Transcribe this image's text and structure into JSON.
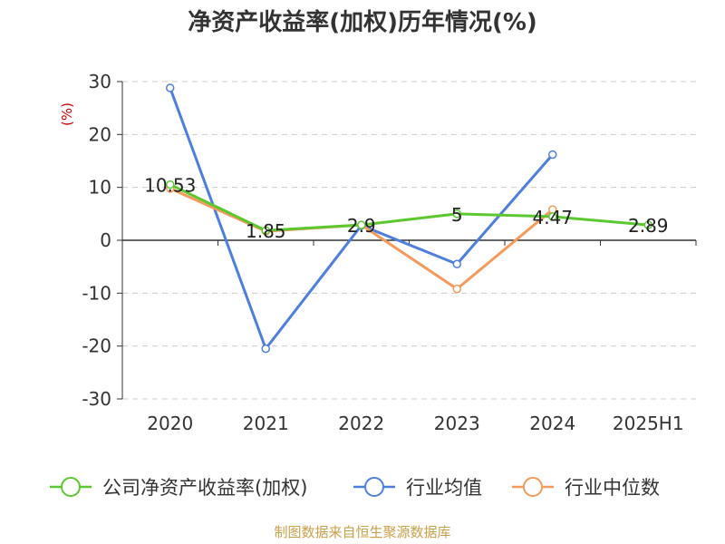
{
  "chart_data": {
    "type": "line",
    "title": "净资产收益率(加权)历年情况(%)",
    "ylabel": "(%)",
    "xlabel": "",
    "categories": [
      "2020",
      "2021",
      "2022",
      "2023",
      "2024",
      "2025H1"
    ],
    "ylim": [
      -30,
      30
    ],
    "yticks": [
      30,
      20,
      10,
      0,
      -10,
      -20,
      -30
    ],
    "grid": true,
    "legend_position": "bottom",
    "series": [
      {
        "name": "公司净资产收益率(加权)",
        "color": "#5cc830",
        "values": [
          10.53,
          1.85,
          2.9,
          5,
          4.47,
          2.89
        ],
        "labels": [
          "10.53",
          "1.85",
          "2.9",
          "5",
          "4.47",
          "2.89"
        ]
      },
      {
        "name": "行业均值",
        "color": "#4e7fdc",
        "values": [
          28.8,
          -20.5,
          2.8,
          -4.5,
          16.2,
          null
        ]
      },
      {
        "name": "行业中位数",
        "color": "#f59a5a",
        "values": [
          9.8,
          1.7,
          2.9,
          -9.2,
          5.8,
          null
        ]
      }
    ],
    "source": "制图数据来自恒生聚源数据库"
  }
}
